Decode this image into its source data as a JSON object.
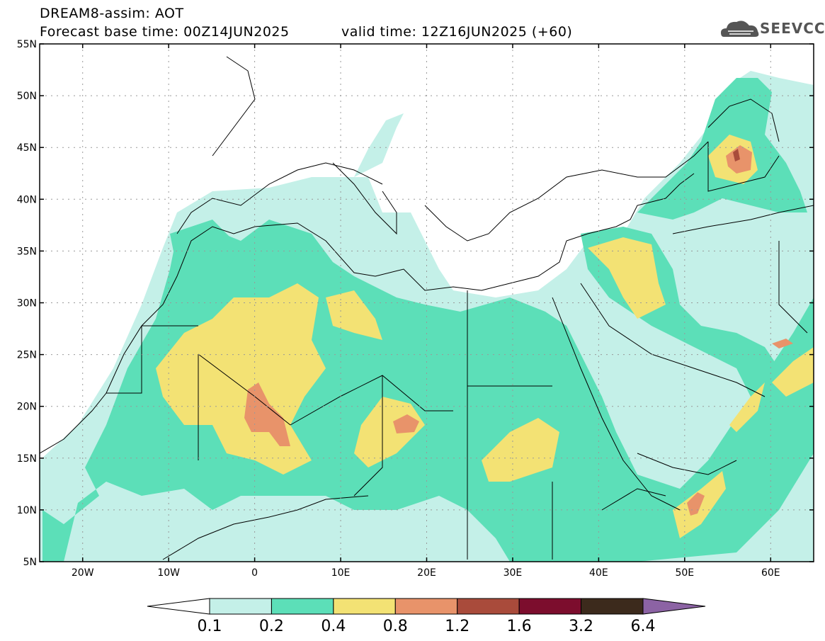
{
  "title": {
    "line1": "DREAM8-assim: AOT",
    "line2": "Forecast base time: 00Z14JUN2025",
    "valid": "valid time: 12Z16JUN2025 (+60)"
  },
  "logo": {
    "text": "SEEVCCC",
    "icon": "cloud-logo-icon"
  },
  "axes": {
    "lat_labels": [
      "55N",
      "50N",
      "45N",
      "40N",
      "35N",
      "30N",
      "25N",
      "20N",
      "15N",
      "10N",
      "5N"
    ],
    "lon_labels": [
      "20W",
      "10W",
      "0",
      "10E",
      "20E",
      "30E",
      "40E",
      "50E",
      "60E"
    ]
  },
  "colorbar": {
    "labels": [
      "0.1",
      "0.2",
      "0.4",
      "0.8",
      "1.2",
      "1.6",
      "3.2",
      "6.4"
    ],
    "colors": [
      "#ffffff",
      "#c4f0e8",
      "#5cdfb8",
      "#f3e274",
      "#e8936a",
      "#a94b3b",
      "#7c0d2d",
      "#3c2a1c",
      "#8c63a4"
    ]
  },
  "map_colors": {
    "light_teal": "#c4f0e8",
    "teal": "#5cdfb8",
    "yellow": "#f3e274",
    "orange": "#e8936a",
    "red_brown": "#a94b3b"
  }
}
